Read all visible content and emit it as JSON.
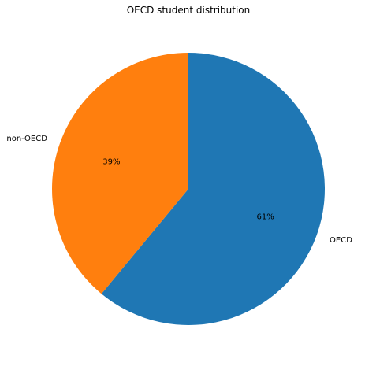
{
  "chart_data": {
    "type": "pie",
    "title": "OECD student distribution",
    "slices": [
      {
        "label": "OECD",
        "value": 61,
        "pct_label": "61%",
        "color": "#1f77b4"
      },
      {
        "label": "non-OECD",
        "value": 39,
        "pct_label": "39%",
        "color": "#ff7f0e"
      }
    ],
    "start_angle_deg": 90,
    "direction": "clockwise",
    "legend": "none"
  }
}
